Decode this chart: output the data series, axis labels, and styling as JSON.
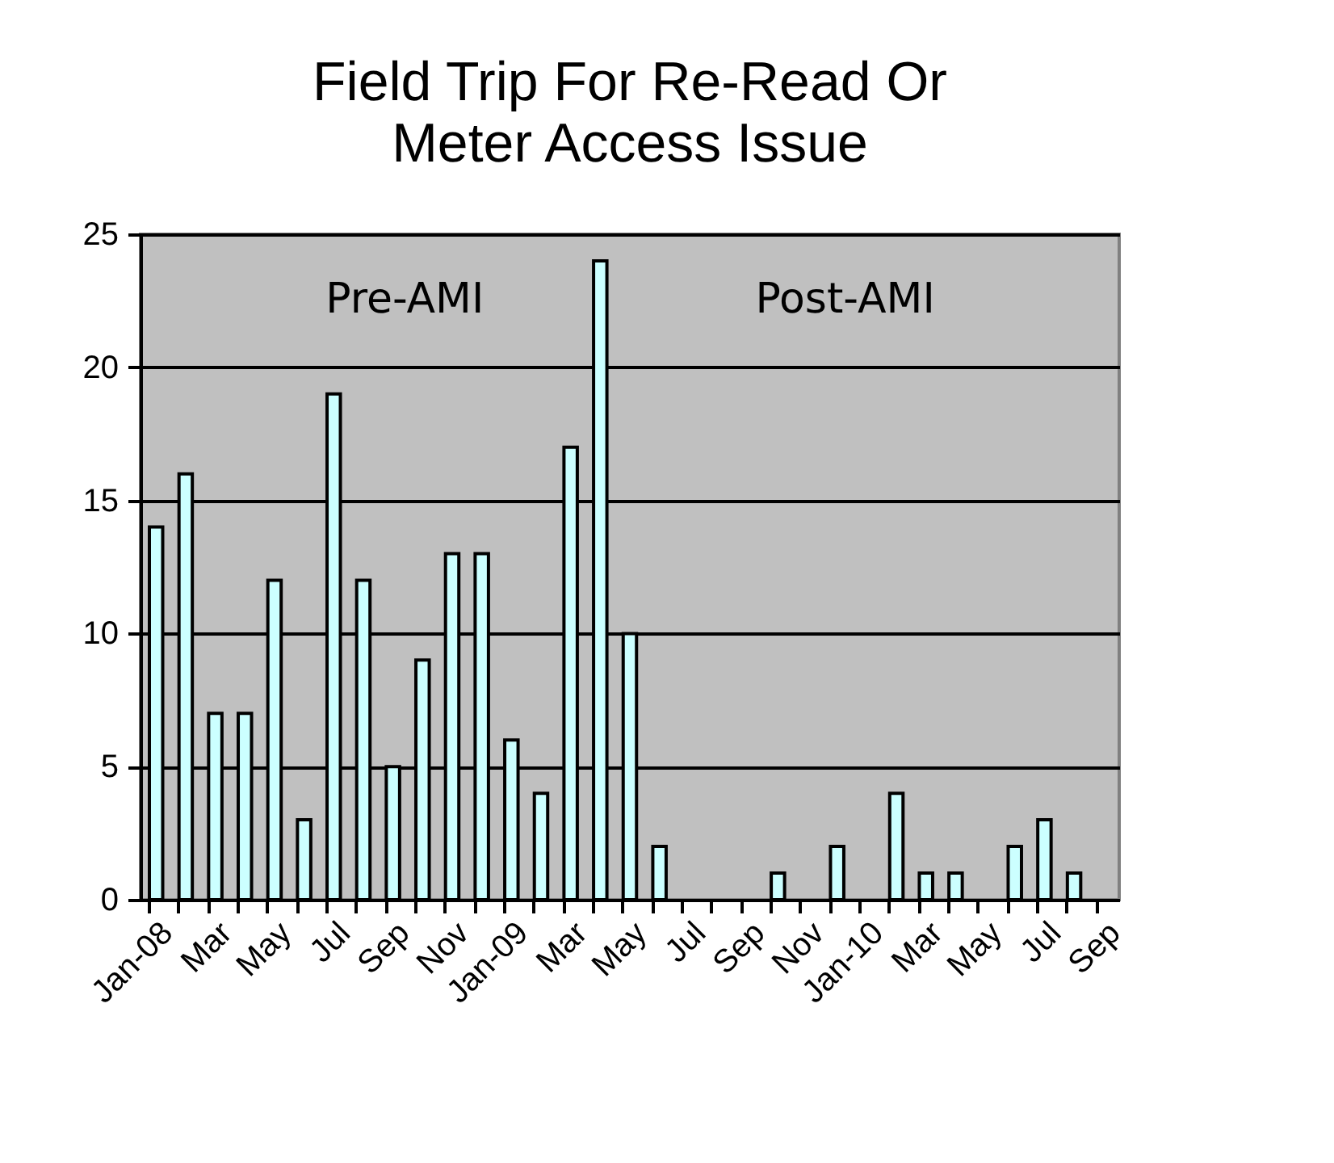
{
  "chart_data": {
    "type": "bar",
    "title": "Field Trip For Re-Read Or Meter Access Issue",
    "categories": [
      "Jan-08",
      null,
      "Mar",
      null,
      "May",
      null,
      "Jul",
      null,
      "Sep",
      null,
      "Nov",
      null,
      "Jan-09",
      null,
      "Mar",
      null,
      "May",
      null,
      "Jul",
      null,
      "Sep",
      null,
      "Nov",
      null,
      "Jan-10",
      null,
      "Mar",
      null,
      "May",
      null,
      "Jul",
      null,
      "Sep"
    ],
    "values": [
      14,
      16,
      7,
      7,
      12,
      3,
      19,
      12,
      5,
      9,
      13,
      13,
      6,
      4,
      17,
      24,
      10,
      2,
      0,
      0,
      0,
      1,
      0,
      2,
      0,
      4,
      1,
      1,
      0,
      2,
      3,
      1,
      0
    ],
    "color": "#ccffff",
    "ylim": [
      0,
      25
    ],
    "yticks": [
      0,
      5,
      10,
      15,
      20,
      25
    ],
    "grid": "y",
    "annotations": [
      "Pre-AMI",
      "Post-AMI"
    ]
  }
}
